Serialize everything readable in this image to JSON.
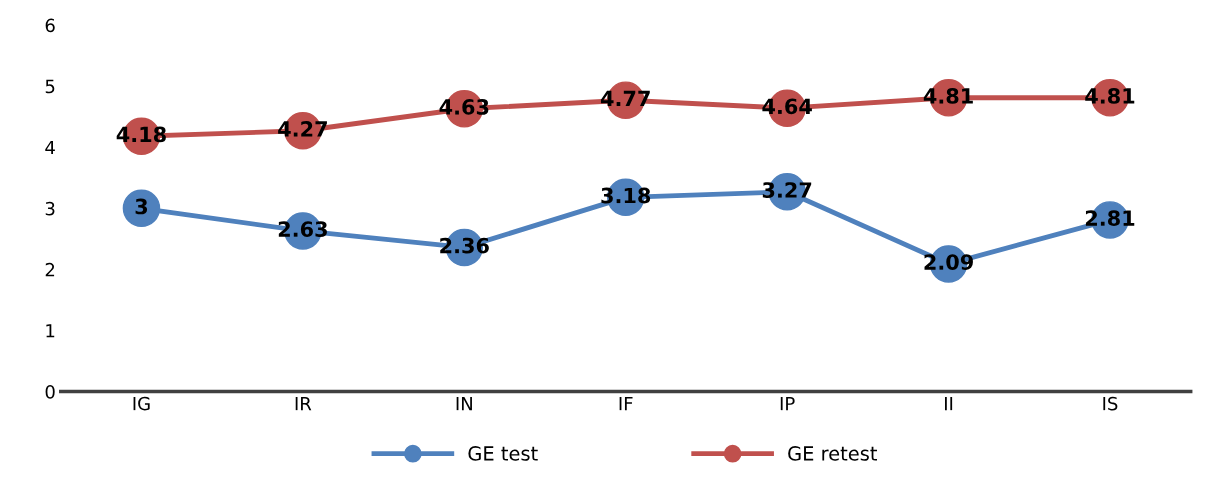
{
  "chart_data": {
    "type": "line",
    "categories": [
      "IG",
      "IR",
      "IN",
      "IF",
      "IP",
      "II",
      "IS"
    ],
    "series": [
      {
        "name": "GE test",
        "color": "#4f81bd",
        "values": [
          3,
          2.63,
          2.36,
          3.18,
          3.27,
          2.09,
          2.81
        ]
      },
      {
        "name": "GE retest",
        "color": "#c0504d",
        "values": [
          4.18,
          4.27,
          4.63,
          4.77,
          4.64,
          4.81,
          4.81
        ]
      }
    ],
    "ylim": [
      0,
      6
    ],
    "yticks": [
      0,
      1,
      2,
      3,
      4,
      5,
      6
    ],
    "data_labels": true,
    "marker": "circle",
    "line_style": "solid",
    "grid": false,
    "legend": "bottom"
  }
}
